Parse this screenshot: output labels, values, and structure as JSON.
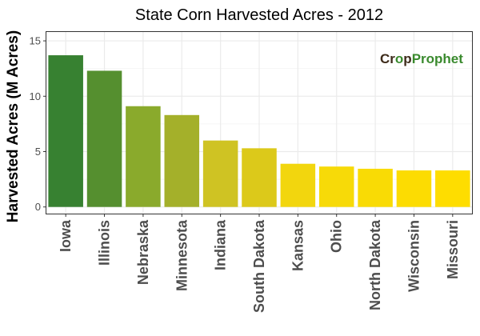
{
  "chart_data": {
    "type": "bar",
    "title": "State Corn Harvested Acres - 2012",
    "xlabel": "",
    "ylabel": "Harvested Acres (M Acres)",
    "categories": [
      "Iowa",
      "Illinois",
      "Nebraska",
      "Minnesota",
      "Indiana",
      "South Dakota",
      "Kansas",
      "Ohio",
      "North Dakota",
      "Wisconsin",
      "Missouri"
    ],
    "values": [
      13.7,
      12.3,
      9.1,
      8.3,
      6.0,
      5.3,
      3.9,
      3.65,
      3.45,
      3.3,
      3.3
    ],
    "bar_colors": [
      "#378131",
      "#558f2f",
      "#8aaa2c",
      "#a4b02a",
      "#cfc323",
      "#dcc91a",
      "#f2d60e",
      "#f7da08",
      "#f9db05",
      "#fcdc02",
      "#fedd00"
    ],
    "ylim": [
      -0.6,
      15.8
    ],
    "yticks": [
      0,
      5,
      10,
      15
    ],
    "grid": true
  },
  "logo": {
    "part1": "Cr",
    "part2": "p",
    "part3": "Prophet",
    "colors": {
      "brown": "#3d2b1a",
      "green": "#3a8a2e"
    }
  },
  "colors": {
    "panel": "#ffffff",
    "grid_major": "#ebebeb",
    "grid_minor": "#f5f5f5",
    "panel_border": "#333333"
  }
}
